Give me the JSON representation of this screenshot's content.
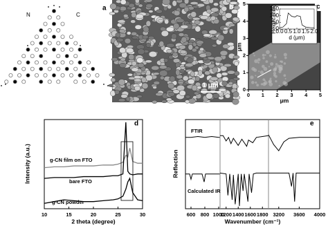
{
  "panels": {
    "a": {
      "label": "a",
      "atoms": [
        "N",
        "C"
      ]
    },
    "b": {
      "label": "b",
      "scale_bar": "1 μm"
    }
  },
  "chart_data": [
    {
      "type": "image",
      "label": "c",
      "xlabel": "μm",
      "ylabel": "μm",
      "xlim": [
        0,
        5
      ],
      "ylim": [
        0,
        5
      ],
      "xticks": [
        0,
        1,
        2,
        3,
        4,
        5
      ],
      "yticks": [
        0,
        1,
        2,
        3,
        4,
        5
      ]
    },
    {
      "type": "line",
      "xlabel": "d (μm)",
      "ylabel": "Height (nm)",
      "color": "#000",
      "x": [
        0,
        0.2,
        0.4,
        0.5,
        0.7,
        0.9,
        1.0,
        1.2,
        1.3,
        1.5,
        1.8,
        2.0
      ],
      "values": [
        10,
        15,
        40,
        120,
        95,
        90,
        100,
        95,
        30,
        15,
        10,
        10
      ],
      "xlim": [
        0,
        2
      ],
      "ylim": [
        0,
        150
      ],
      "xticks": [
        {
          "value": 0,
          "label": "0.0"
        },
        0.5,
        {
          "value": 1,
          "label": "1.0"
        },
        1.5,
        {
          "value": 2,
          "label": "2.0"
        }
      ],
      "yticks": [
        0,
        50,
        100,
        150
      ]
    },
    {
      "type": "line",
      "label": "d",
      "xlabel": "2 theta (degree)",
      "ylabel": "Intensity (a.u.)",
      "xlim": [
        10,
        30
      ],
      "ylim": [
        0,
        10
      ],
      "xticks": [
        10,
        15,
        20,
        25,
        30
      ],
      "x": [
        10,
        12,
        14,
        16,
        18,
        20,
        22,
        24,
        25,
        26,
        26.6,
        27,
        27.4,
        28,
        29,
        30
      ],
      "series": [
        {
          "name": "g-CN film on FTO",
          "color": "#888888",
          "values": [
            4.6,
            4.7,
            4.7,
            4.8,
            4.8,
            4.8,
            4.9,
            4.9,
            5.0,
            5.2,
            6.0,
            5.8,
            6.8,
            5.3,
            5.1,
            5.1
          ]
        },
        {
          "name": "bare FTO",
          "color": "#000000",
          "values": [
            3.4,
            3.5,
            3.5,
            3.5,
            3.6,
            3.6,
            3.6,
            3.7,
            3.7,
            3.9,
            9.7,
            4.2,
            3.9,
            3.8,
            3.9,
            3.9
          ]
        },
        {
          "name": "g-CN powder",
          "color": "#000000",
          "values": [
            0.6,
            0.8,
            1.0,
            0.9,
            0.8,
            0.8,
            0.9,
            1.0,
            1.1,
            1.4,
            2.2,
            3.0,
            3.4,
            1.8,
            1.0,
            0.9
          ]
        }
      ]
    },
    {
      "type": "broken-line",
      "label": "e",
      "xlabel": "Wavenumber (cm⁻¹)",
      "ylabel": "Reflection",
      "ylim": [
        0,
        10
      ],
      "series": [
        {
          "name": "FTIR",
          "color": "#000000"
        },
        {
          "name": "Calculated IR",
          "color": "#000000"
        }
      ],
      "segments": [
        {
          "xlim": [
            520,
            1020
          ],
          "xticks": [
            600,
            800,
            1000
          ],
          "lines": [
            {
              "x": [
                520,
                600,
                700,
                800,
                900,
                1000,
                1020
              ],
              "values": [
                8.0,
                8.0,
                8.1,
                8.0,
                8.1,
                8.0,
                8.0
              ]
            },
            {
              "x": [
                520,
                580,
                600,
                620,
                760,
                790,
                810,
                1020
              ],
              "values": [
                3.9,
                3.9,
                3.3,
                3.9,
                3.9,
                3.0,
                3.9,
                3.9
              ]
            }
          ]
        },
        {
          "xlim": [
            1100,
            1900
          ],
          "xticks": [
            1200,
            1400,
            1600,
            1800
          ],
          "lines": [
            {
              "x": [
                1100,
                1150,
                1200,
                1240,
                1280,
                1320,
                1400,
                1460,
                1540,
                1570,
                1640,
                1700,
                1800,
                1900
              ],
              "values": [
                8.2,
                8.2,
                7.6,
                8.0,
                7.3,
                7.9,
                7.1,
                7.8,
                7.0,
                7.7,
                7.4,
                8.0,
                8.1,
                8.2
              ]
            },
            {
              "x": [
                1100,
                1200,
                1230,
                1260,
                1300,
                1320,
                1350,
                1400,
                1420,
                1450,
                1480,
                1500,
                1560,
                1580,
                1620,
                1650,
                1700,
                1800,
                1900
              ],
              "values": [
                4.0,
                3.9,
                1.5,
                3.9,
                1.0,
                3.8,
                0.5,
                3.9,
                0.3,
                3.9,
                2.0,
                3.9,
                0.8,
                3.9,
                1.8,
                3.9,
                4.0,
                4.0,
                4.0
              ]
            }
          ]
        },
        {
          "xlim": [
            3000,
            4000
          ],
          "xticks": [
            3200,
            3600,
            4000
          ],
          "lines": [
            {
              "x": [
                3000,
                3100,
                3200,
                3300,
                3400,
                3600,
                3800,
                4000
              ],
              "values": [
                8.3,
                7.2,
                6.5,
                7.5,
                7.9,
                8.0,
                8.0,
                8.0
              ]
            },
            {
              "x": [
                3000,
                3400,
                3450,
                3480,
                3510,
                3540,
                3600,
                4000
              ],
              "values": [
                4.0,
                4.0,
                2.5,
                4.0,
                0.8,
                4.0,
                4.0,
                4.0
              ]
            }
          ]
        }
      ]
    }
  ]
}
